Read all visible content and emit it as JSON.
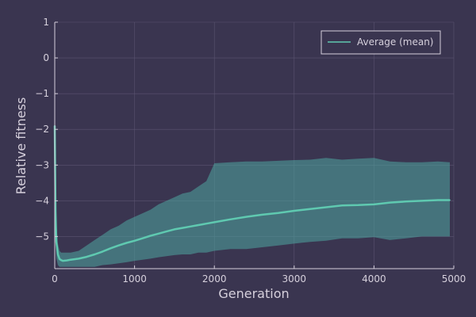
{
  "chart_data": {
    "type": "line",
    "title": "",
    "xlabel": "Generation",
    "ylabel": "Relative fitness",
    "xlim": [
      0,
      5000
    ],
    "ylim": [
      -5.9,
      1
    ],
    "xticks": [
      0,
      1000,
      2000,
      3000,
      4000,
      5000
    ],
    "yticks": [
      1,
      0,
      -1,
      -2,
      -3,
      -4,
      -5
    ],
    "ytick_labels": [
      "1",
      "0",
      "−1",
      "−2",
      "−3",
      "−4",
      "−5"
    ],
    "grid": true,
    "legend": {
      "placement": "top-right",
      "entries": [
        "Average (mean)"
      ]
    },
    "series": [
      {
        "name": "Average (mean)",
        "color": "#5fc9b0",
        "x": [
          0,
          10,
          20,
          40,
          60,
          80,
          100,
          150,
          200,
          300,
          400,
          500,
          600,
          700,
          800,
          900,
          1000,
          1100,
          1200,
          1300,
          1400,
          1500,
          1600,
          1700,
          1800,
          1900,
          2000,
          2200,
          2400,
          2600,
          2800,
          3000,
          3200,
          3400,
          3600,
          3800,
          4000,
          4200,
          4400,
          4600,
          4800,
          4950
        ],
        "values": [
          -1.9,
          -4.3,
          -5.15,
          -5.5,
          -5.63,
          -5.66,
          -5.68,
          -5.67,
          -5.65,
          -5.62,
          -5.57,
          -5.5,
          -5.42,
          -5.33,
          -5.25,
          -5.18,
          -5.12,
          -5.05,
          -4.98,
          -4.92,
          -4.86,
          -4.8,
          -4.76,
          -4.72,
          -4.68,
          -4.64,
          -4.6,
          -4.52,
          -4.45,
          -4.39,
          -4.34,
          -4.28,
          -4.23,
          -4.18,
          -4.13,
          -4.12,
          -4.1,
          -4.05,
          -4.02,
          -4.0,
          -3.98,
          -3.98
        ]
      }
    ],
    "band": {
      "color": "#4fa5a0",
      "x": [
        0,
        10,
        20,
        40,
        60,
        80,
        100,
        150,
        200,
        300,
        400,
        500,
        600,
        700,
        800,
        900,
        1000,
        1100,
        1200,
        1300,
        1400,
        1500,
        1600,
        1700,
        1800,
        1900,
        2000,
        2200,
        2400,
        2600,
        2800,
        3000,
        3200,
        3400,
        3600,
        3800,
        4000,
        4200,
        4400,
        4600,
        4800,
        4950
      ],
      "upper": [
        -1.6,
        -3.6,
        -4.6,
        -5.2,
        -5.4,
        -5.45,
        -5.45,
        -5.45,
        -5.45,
        -5.4,
        -5.25,
        -5.1,
        -4.95,
        -4.8,
        -4.7,
        -4.55,
        -4.45,
        -4.35,
        -4.25,
        -4.1,
        -4.0,
        -3.9,
        -3.8,
        -3.75,
        -3.6,
        -3.45,
        -2.95,
        -2.92,
        -2.9,
        -2.9,
        -2.88,
        -2.86,
        -2.85,
        -2.8,
        -2.85,
        -2.82,
        -2.8,
        -2.9,
        -2.92,
        -2.92,
        -2.9,
        -2.92
      ],
      "lower": [
        -2.2,
        -5.0,
        -5.6,
        -5.8,
        -5.85,
        -5.85,
        -5.85,
        -5.85,
        -5.85,
        -5.85,
        -5.85,
        -5.85,
        -5.8,
        -5.78,
        -5.75,
        -5.72,
        -5.68,
        -5.65,
        -5.62,
        -5.58,
        -5.55,
        -5.52,
        -5.5,
        -5.5,
        -5.45,
        -5.45,
        -5.4,
        -5.35,
        -5.35,
        -5.3,
        -5.25,
        -5.2,
        -5.15,
        -5.12,
        -5.05,
        -5.05,
        -5.02,
        -5.1,
        -5.05,
        -5.0,
        -5.0,
        -5.0
      ]
    }
  }
}
